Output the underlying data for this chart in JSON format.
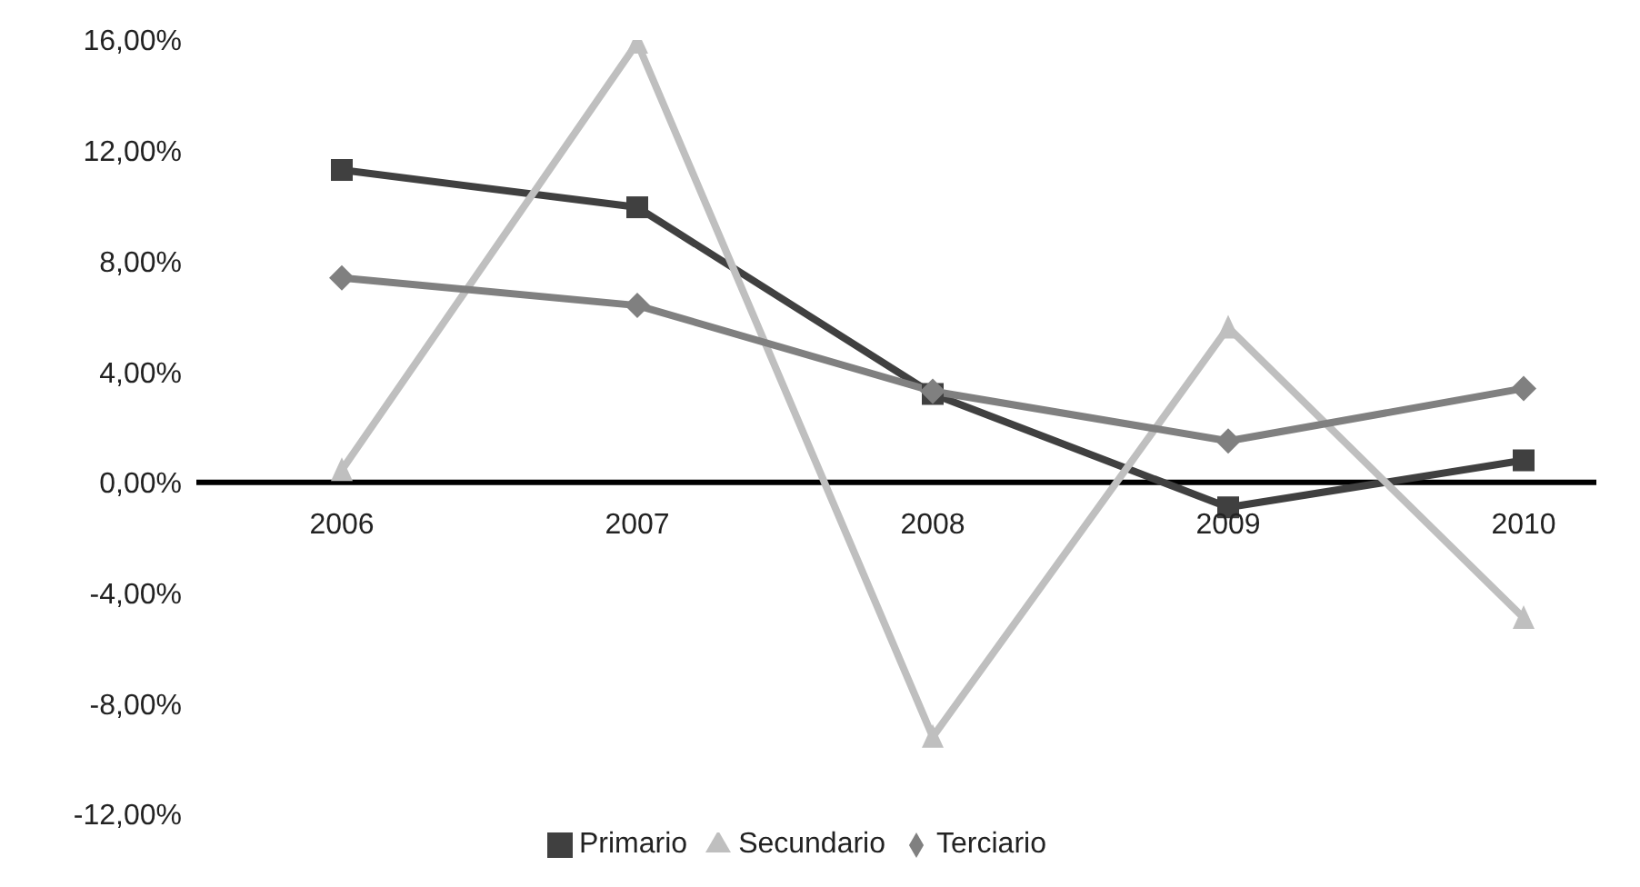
{
  "chart_data": {
    "type": "line",
    "categories": [
      "2006",
      "2007",
      "2008",
      "2009",
      "2010"
    ],
    "series": [
      {
        "name": "Primario",
        "color": "#404040",
        "marker": "square",
        "values": [
          11.3,
          9.95,
          3.2,
          -0.9,
          0.8
        ]
      },
      {
        "name": "Secundario",
        "color": "#bfbfbf",
        "marker": "triangle",
        "values": [
          0.45,
          15.9,
          -9.2,
          5.6,
          -4.9
        ]
      },
      {
        "name": "Terciario",
        "color": "#808080",
        "marker": "diamond",
        "values": [
          7.4,
          6.4,
          3.3,
          1.5,
          3.4
        ]
      }
    ],
    "ylim": [
      -12,
      16
    ],
    "yticks": [
      {
        "value": -12,
        "label": "-12,00%"
      },
      {
        "value": -8,
        "label": "-8,00%"
      },
      {
        "value": -4,
        "label": "-4,00%"
      },
      {
        "value": 0,
        "label": "0,00%"
      },
      {
        "value": 4,
        "label": "4,00%"
      },
      {
        "value": 8,
        "label": "8,00%"
      },
      {
        "value": 12,
        "label": "12,00%"
      },
      {
        "value": 16,
        "label": "16,00%"
      }
    ],
    "grid": false,
    "legend": "bottom",
    "line_style": "solid"
  }
}
